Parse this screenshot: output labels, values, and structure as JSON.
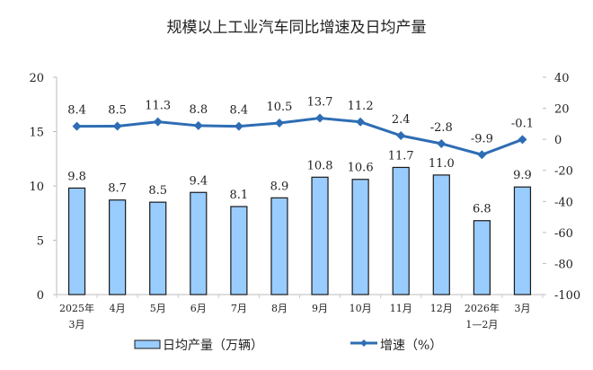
{
  "chart_data": {
    "type": "bar+line",
    "title": "规模以上工业汽车同比增速及日均产量",
    "categories": [
      [
        "2025年",
        "3月"
      ],
      [
        "4月"
      ],
      [
        "5月"
      ],
      [
        "6月"
      ],
      [
        "7月"
      ],
      [
        "8月"
      ],
      [
        "9月"
      ],
      [
        "10月"
      ],
      [
        "11月"
      ],
      [
        "12月"
      ],
      [
        "2026年",
        "1—2月"
      ],
      [
        "3月"
      ]
    ],
    "series": [
      {
        "name": "日均产量（万辆）",
        "type": "bar",
        "axis": "left",
        "color": "#99CCFF",
        "border": "#1a1a1a",
        "values": [
          9.8,
          8.7,
          8.5,
          9.4,
          8.1,
          8.9,
          10.8,
          10.6,
          11.7,
          11.0,
          6.8,
          9.9
        ],
        "labels": [
          "9.8",
          "8.7",
          "8.5",
          "9.4",
          "8.1",
          "8.9",
          "10.8",
          "10.6",
          "11.7",
          "11.0",
          "6.8",
          "9.9"
        ]
      },
      {
        "name": "增速（%）",
        "type": "line",
        "axis": "right",
        "color": "#2E6DB4",
        "marker": "diamond",
        "values": [
          8.4,
          8.5,
          11.3,
          8.8,
          8.4,
          10.5,
          13.7,
          11.2,
          2.4,
          -2.8,
          -9.9,
          -0.1
        ],
        "labels": [
          "8.4",
          "8.5",
          "11.3",
          "8.8",
          "8.4",
          "10.5",
          "13.7",
          "11.2",
          "2.4",
          "-2.8",
          "-9.9",
          "-0.1"
        ]
      }
    ],
    "left_axis": {
      "range": [
        0,
        20
      ],
      "ticks": [
        "0",
        "5",
        "10",
        "15",
        "20"
      ]
    },
    "right_axis": {
      "range": [
        -100,
        40
      ],
      "ticks": [
        "-100",
        "-80",
        "-60",
        "-40",
        "-20",
        "0",
        "20",
        "40"
      ]
    },
    "grid": false,
    "legend": "bottom"
  }
}
